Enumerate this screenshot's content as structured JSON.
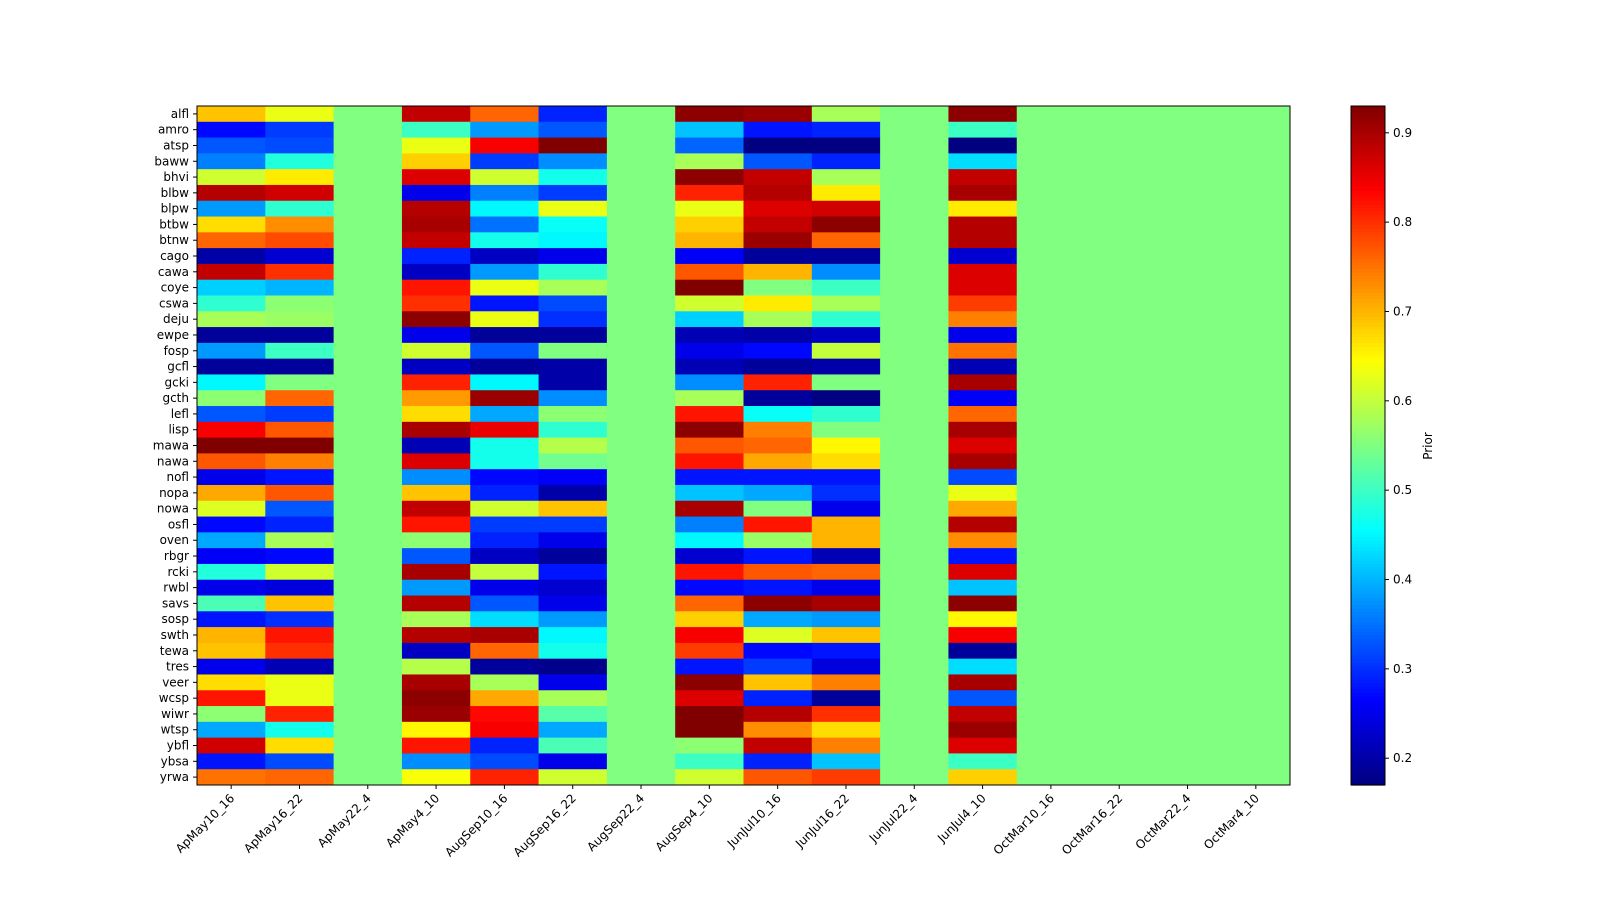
{
  "chart_data": {
    "type": "heatmap",
    "title": "",
    "xlabel": "",
    "ylabel": "",
    "colormap": "jet",
    "colorbar": {
      "label": "Prior",
      "range": [
        0.17,
        0.93
      ],
      "ticks": [
        0.2,
        0.3,
        0.4,
        0.5,
        0.6,
        0.7,
        0.8,
        0.9
      ]
    },
    "columns": [
      "ApMay10_16",
      "ApMay16_22",
      "ApMay22_4",
      "ApMay4_10",
      "AugSep10_16",
      "AugSep16_22",
      "AugSep22_4",
      "AugSep4_10",
      "JunJul10_16",
      "JunJul16_22",
      "JunJul22_4",
      "JunJul4_10",
      "OctMar10_16",
      "OctMar16_22",
      "OctMar22_4",
      "OctMar4_10"
    ],
    "rows": [
      "alfl",
      "amro",
      "atsp",
      "baww",
      "bhvi",
      "blbw",
      "blpw",
      "btbw",
      "btnw",
      "cago",
      "cawa",
      "coye",
      "cswa",
      "deju",
      "ewpe",
      "fosp",
      "gcfl",
      "gcki",
      "gcth",
      "lefl",
      "lisp",
      "mawa",
      "nawa",
      "nofl",
      "nopa",
      "nowa",
      "osfl",
      "oven",
      "rbgr",
      "rcki",
      "rwbl",
      "savs",
      "sosp",
      "swth",
      "tewa",
      "tres",
      "veer",
      "wcsp",
      "wiwr",
      "wtsp",
      "ybfl",
      "ybsa",
      "yrwa"
    ],
    "values": [
      [
        0.69,
        0.63,
        0.55,
        0.88,
        0.76,
        0.29,
        0.55,
        0.92,
        0.91,
        0.58,
        0.55,
        0.92,
        0.55,
        0.55,
        0.55,
        0.55
      ],
      [
        0.27,
        0.31,
        0.55,
        0.5,
        0.38,
        0.33,
        0.55,
        0.41,
        0.28,
        0.29,
        0.55,
        0.5,
        0.55,
        0.55,
        0.55,
        0.55
      ],
      [
        0.33,
        0.32,
        0.55,
        0.63,
        0.84,
        0.93,
        0.55,
        0.34,
        0.17,
        0.17,
        0.55,
        0.17,
        0.55,
        0.55,
        0.55,
        0.55
      ],
      [
        0.36,
        0.48,
        0.55,
        0.68,
        0.31,
        0.37,
        0.55,
        0.58,
        0.33,
        0.29,
        0.55,
        0.43,
        0.55,
        0.55,
        0.55,
        0.55
      ],
      [
        0.61,
        0.66,
        0.55,
        0.86,
        0.61,
        0.47,
        0.55,
        0.92,
        0.88,
        0.58,
        0.55,
        0.88,
        0.55,
        0.55,
        0.55,
        0.55
      ],
      [
        0.89,
        0.87,
        0.55,
        0.25,
        0.36,
        0.31,
        0.55,
        0.81,
        0.89,
        0.66,
        0.55,
        0.9,
        0.55,
        0.55,
        0.55,
        0.55
      ],
      [
        0.38,
        0.49,
        0.55,
        0.89,
        0.45,
        0.63,
        0.55,
        0.63,
        0.86,
        0.87,
        0.55,
        0.66,
        0.55,
        0.55,
        0.55,
        0.55
      ],
      [
        0.67,
        0.73,
        0.55,
        0.9,
        0.35,
        0.46,
        0.55,
        0.68,
        0.88,
        0.92,
        0.55,
        0.89,
        0.55,
        0.55,
        0.55,
        0.55
      ],
      [
        0.76,
        0.78,
        0.55,
        0.88,
        0.47,
        0.45,
        0.55,
        0.7,
        0.91,
        0.76,
        0.55,
        0.89,
        0.55,
        0.55,
        0.55,
        0.55
      ],
      [
        0.2,
        0.23,
        0.55,
        0.29,
        0.22,
        0.25,
        0.55,
        0.26,
        0.19,
        0.19,
        0.55,
        0.23,
        0.55,
        0.55,
        0.55,
        0.55
      ],
      [
        0.88,
        0.8,
        0.55,
        0.22,
        0.38,
        0.49,
        0.55,
        0.77,
        0.7,
        0.37,
        0.55,
        0.86,
        0.55,
        0.55,
        0.55,
        0.55
      ],
      [
        0.42,
        0.4,
        0.55,
        0.82,
        0.63,
        0.58,
        0.55,
        0.93,
        0.55,
        0.5,
        0.55,
        0.86,
        0.55,
        0.55,
        0.55,
        0.55
      ],
      [
        0.49,
        0.56,
        0.55,
        0.8,
        0.28,
        0.32,
        0.55,
        0.61,
        0.66,
        0.58,
        0.55,
        0.79,
        0.55,
        0.55,
        0.55,
        0.55
      ],
      [
        0.58,
        0.57,
        0.55,
        0.92,
        0.63,
        0.3,
        0.55,
        0.42,
        0.58,
        0.49,
        0.55,
        0.74,
        0.55,
        0.55,
        0.55,
        0.55
      ],
      [
        0.19,
        0.19,
        0.55,
        0.25,
        0.19,
        0.19,
        0.55,
        0.21,
        0.2,
        0.22,
        0.55,
        0.25,
        0.55,
        0.55,
        0.55,
        0.55
      ],
      [
        0.38,
        0.5,
        0.55,
        0.61,
        0.33,
        0.55,
        0.55,
        0.25,
        0.27,
        0.6,
        0.55,
        0.75,
        0.55,
        0.55,
        0.55,
        0.55
      ],
      [
        0.19,
        0.19,
        0.55,
        0.22,
        0.19,
        0.2,
        0.55,
        0.21,
        0.19,
        0.2,
        0.55,
        0.21,
        0.55,
        0.55,
        0.55,
        0.55
      ],
      [
        0.45,
        0.55,
        0.55,
        0.81,
        0.45,
        0.2,
        0.55,
        0.37,
        0.81,
        0.55,
        0.55,
        0.9,
        0.55,
        0.55,
        0.55,
        0.55
      ],
      [
        0.56,
        0.76,
        0.55,
        0.72,
        0.91,
        0.37,
        0.55,
        0.58,
        0.19,
        0.17,
        0.55,
        0.26,
        0.55,
        0.55,
        0.55,
        0.55
      ],
      [
        0.33,
        0.31,
        0.55,
        0.67,
        0.39,
        0.56,
        0.55,
        0.82,
        0.46,
        0.49,
        0.55,
        0.76,
        0.55,
        0.55,
        0.55,
        0.55
      ],
      [
        0.84,
        0.77,
        0.55,
        0.9,
        0.85,
        0.49,
        0.55,
        0.92,
        0.74,
        0.55,
        0.55,
        0.9,
        0.55,
        0.55,
        0.55,
        0.55
      ],
      [
        0.93,
        0.93,
        0.55,
        0.21,
        0.47,
        0.59,
        0.55,
        0.77,
        0.76,
        0.65,
        0.55,
        0.86,
        0.55,
        0.55,
        0.55,
        0.55
      ],
      [
        0.77,
        0.74,
        0.55,
        0.86,
        0.47,
        0.54,
        0.55,
        0.82,
        0.71,
        0.67,
        0.55,
        0.9,
        0.55,
        0.55,
        0.55,
        0.55
      ],
      [
        0.25,
        0.28,
        0.55,
        0.37,
        0.27,
        0.26,
        0.55,
        0.28,
        0.28,
        0.28,
        0.55,
        0.32,
        0.55,
        0.55,
        0.55,
        0.55
      ],
      [
        0.71,
        0.77,
        0.55,
        0.69,
        0.29,
        0.2,
        0.55,
        0.41,
        0.39,
        0.3,
        0.55,
        0.63,
        0.55,
        0.55,
        0.55,
        0.55
      ],
      [
        0.62,
        0.33,
        0.55,
        0.88,
        0.61,
        0.69,
        0.55,
        0.9,
        0.55,
        0.25,
        0.55,
        0.71,
        0.55,
        0.55,
        0.55,
        0.55
      ],
      [
        0.27,
        0.29,
        0.55,
        0.82,
        0.31,
        0.31,
        0.55,
        0.36,
        0.82,
        0.7,
        0.55,
        0.89,
        0.55,
        0.55,
        0.55,
        0.55
      ],
      [
        0.39,
        0.58,
        0.55,
        0.56,
        0.29,
        0.25,
        0.55,
        0.45,
        0.57,
        0.7,
        0.55,
        0.73,
        0.55,
        0.55,
        0.55,
        0.55
      ],
      [
        0.26,
        0.27,
        0.55,
        0.33,
        0.22,
        0.19,
        0.55,
        0.23,
        0.28,
        0.21,
        0.55,
        0.28,
        0.55,
        0.55,
        0.55,
        0.55
      ],
      [
        0.48,
        0.61,
        0.55,
        0.9,
        0.6,
        0.28,
        0.55,
        0.82,
        0.77,
        0.76,
        0.55,
        0.86,
        0.55,
        0.55,
        0.55,
        0.55
      ],
      [
        0.25,
        0.24,
        0.55,
        0.38,
        0.25,
        0.23,
        0.55,
        0.27,
        0.28,
        0.25,
        0.55,
        0.41,
        0.55,
        0.55,
        0.55,
        0.55
      ],
      [
        0.51,
        0.69,
        0.55,
        0.89,
        0.33,
        0.25,
        0.55,
        0.76,
        0.92,
        0.9,
        0.55,
        0.92,
        0.55,
        0.55,
        0.55,
        0.55
      ],
      [
        0.28,
        0.3,
        0.55,
        0.58,
        0.43,
        0.38,
        0.55,
        0.68,
        0.39,
        0.38,
        0.55,
        0.65,
        0.55,
        0.55,
        0.55,
        0.55
      ],
      [
        0.7,
        0.82,
        0.55,
        0.89,
        0.9,
        0.45,
        0.55,
        0.84,
        0.62,
        0.69,
        0.55,
        0.84,
        0.55,
        0.55,
        0.55,
        0.55
      ],
      [
        0.69,
        0.8,
        0.55,
        0.22,
        0.76,
        0.47,
        0.55,
        0.79,
        0.27,
        0.28,
        0.55,
        0.19,
        0.55,
        0.55,
        0.55,
        0.55
      ],
      [
        0.25,
        0.21,
        0.55,
        0.59,
        0.19,
        0.18,
        0.55,
        0.28,
        0.31,
        0.24,
        0.55,
        0.43,
        0.55,
        0.55,
        0.55,
        0.55
      ],
      [
        0.67,
        0.63,
        0.55,
        0.9,
        0.58,
        0.25,
        0.55,
        0.92,
        0.69,
        0.74,
        0.55,
        0.9,
        0.55,
        0.55,
        0.55,
        0.55
      ],
      [
        0.82,
        0.63,
        0.55,
        0.92,
        0.71,
        0.58,
        0.55,
        0.86,
        0.29,
        0.19,
        0.55,
        0.33,
        0.55,
        0.55,
        0.55,
        0.55
      ],
      [
        0.56,
        0.81,
        0.55,
        0.91,
        0.83,
        0.52,
        0.55,
        0.93,
        0.89,
        0.8,
        0.55,
        0.88,
        0.55,
        0.55,
        0.55,
        0.55
      ],
      [
        0.39,
        0.47,
        0.55,
        0.65,
        0.84,
        0.39,
        0.55,
        0.93,
        0.73,
        0.67,
        0.55,
        0.91,
        0.55,
        0.55,
        0.55,
        0.55
      ],
      [
        0.87,
        0.67,
        0.55,
        0.82,
        0.29,
        0.51,
        0.55,
        0.56,
        0.88,
        0.74,
        0.55,
        0.86,
        0.55,
        0.55,
        0.55,
        0.55
      ],
      [
        0.28,
        0.32,
        0.55,
        0.37,
        0.32,
        0.25,
        0.55,
        0.5,
        0.29,
        0.41,
        0.55,
        0.5,
        0.55,
        0.55,
        0.55,
        0.55
      ],
      [
        0.75,
        0.76,
        0.55,
        0.64,
        0.81,
        0.61,
        0.55,
        0.61,
        0.77,
        0.79,
        0.55,
        0.68,
        0.55,
        0.55,
        0.55,
        0.55
      ]
    ]
  }
}
